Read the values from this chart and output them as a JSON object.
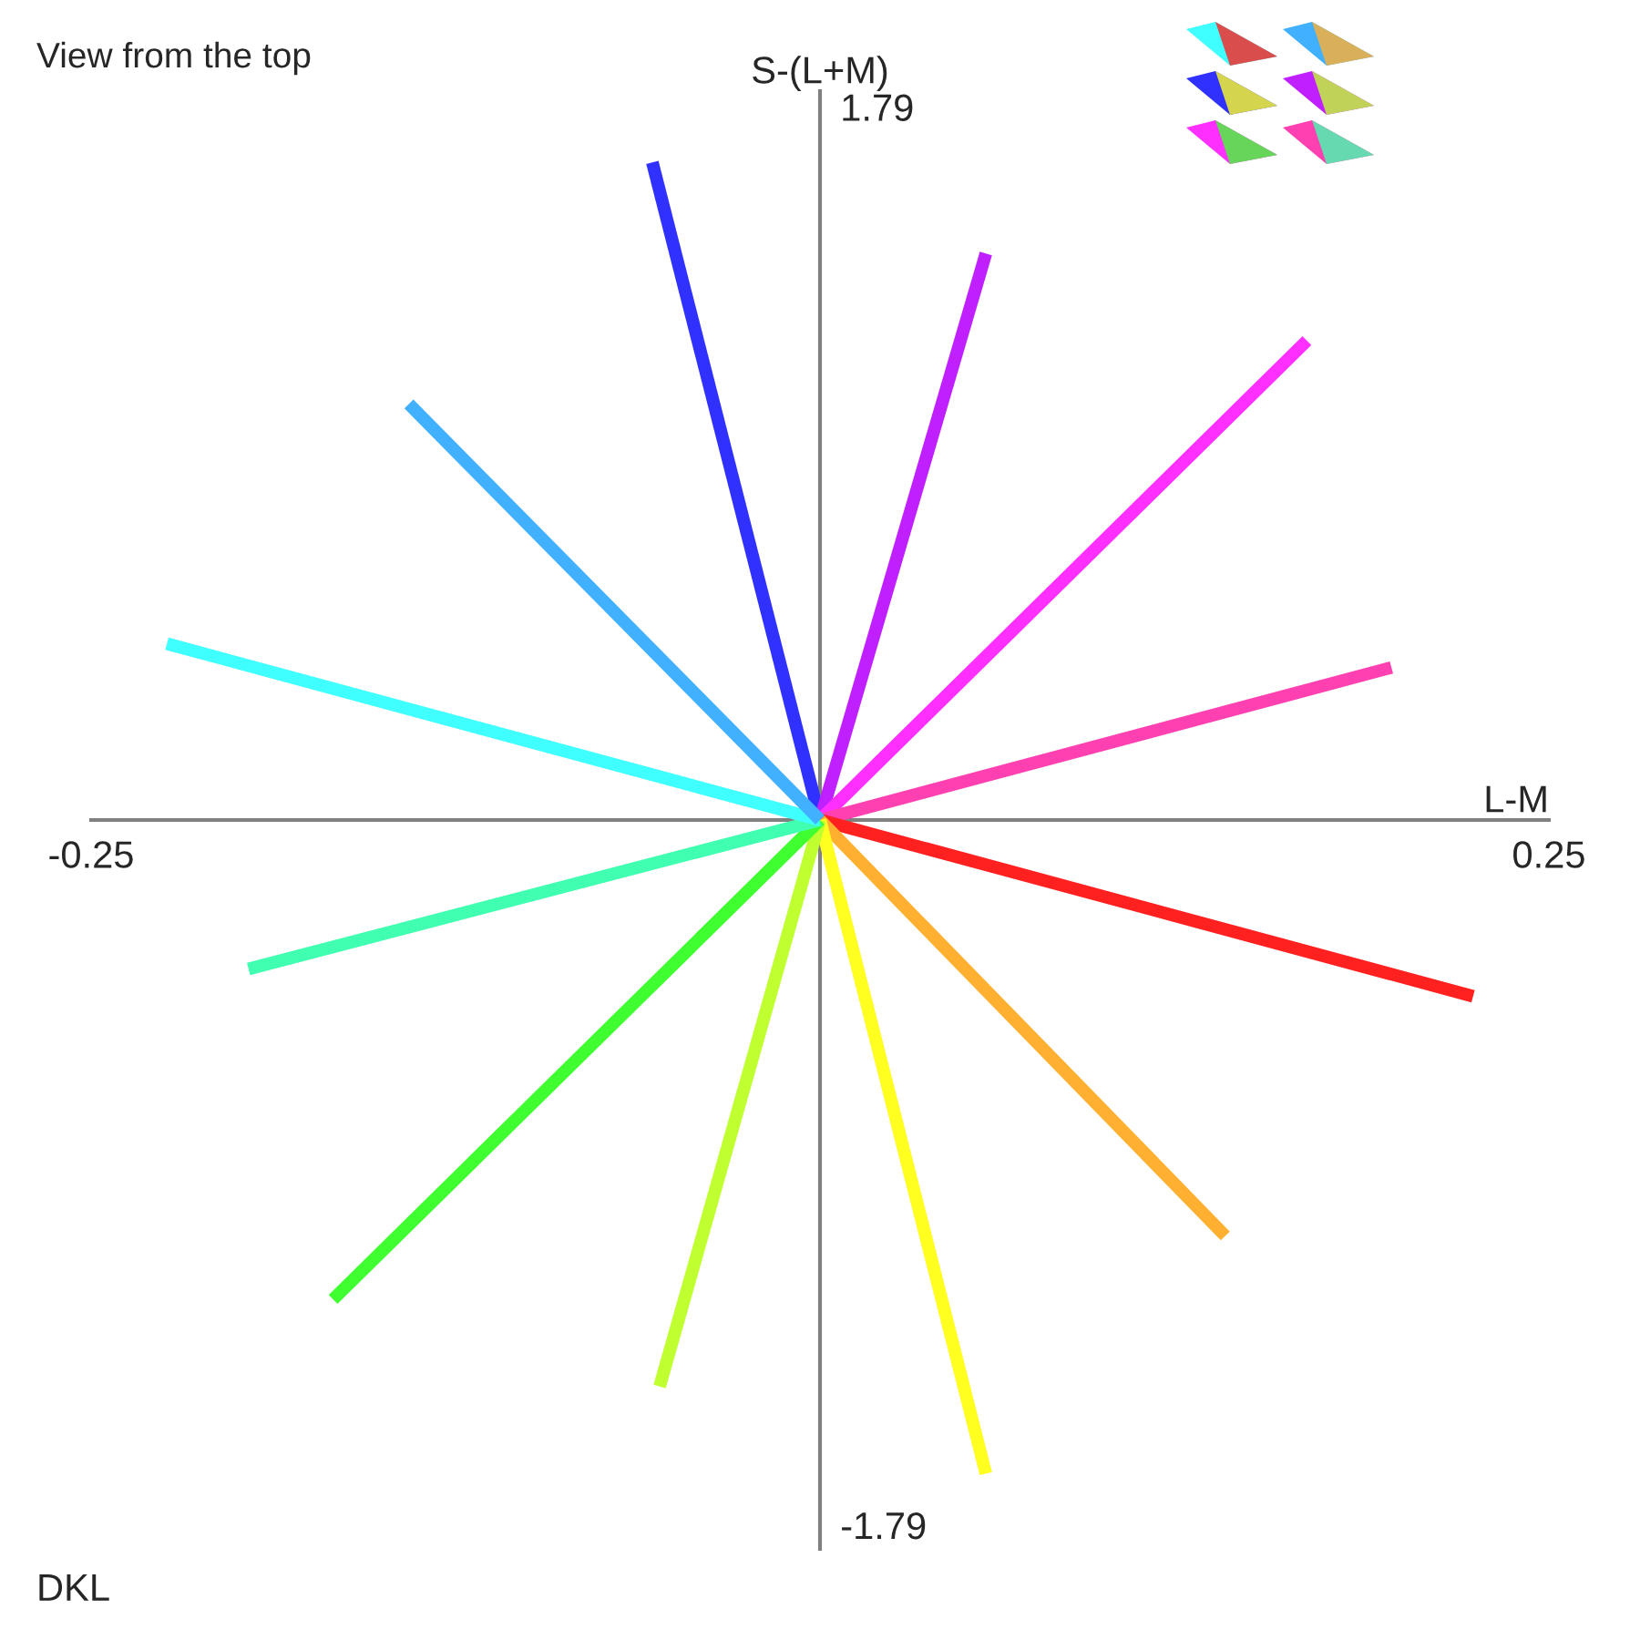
{
  "chart_data": {
    "type": "line",
    "title": "View from the top",
    "xlabel": "L-M",
    "ylabel": "S-(L+M)",
    "annotations": [
      "DKL"
    ],
    "xlim": [
      -0.25,
      0.25
    ],
    "ylim": [
      -1.84,
      1.84
    ],
    "xticks": [
      -0.25,
      0.25
    ],
    "yticks": [
      -1.79,
      1.79
    ],
    "grid": false,
    "marker": "none",
    "line_style": "solid",
    "series": [
      {
        "color": "#3030ff",
        "x": [
          0,
          -0.0575
        ],
        "values": [
          0,
          1.66
        ]
      },
      {
        "color": "#c020ff",
        "x": [
          0,
          0.0569
        ],
        "values": [
          0,
          1.43
        ]
      },
      {
        "color": "#ff30ff",
        "x": [
          0,
          0.167
        ],
        "values": [
          0,
          1.21
        ]
      },
      {
        "color": "#ff40b0",
        "x": [
          0,
          0.196
        ],
        "values": [
          0,
          0.385
        ]
      },
      {
        "color": "#ff2020",
        "x": [
          0,
          0.224
        ],
        "values": [
          0,
          -0.445
        ]
      },
      {
        "color": "#ffb030",
        "x": [
          0,
          0.139
        ],
        "values": [
          0,
          -1.05
        ]
      },
      {
        "color": "#ffff20",
        "x": [
          0,
          0.0569
        ],
        "values": [
          0,
          -1.65
        ]
      },
      {
        "color": "#c0ff30",
        "x": [
          0,
          -0.055
        ],
        "values": [
          0,
          -1.43
        ]
      },
      {
        "color": "#40ff30",
        "x": [
          0,
          -0.167
        ],
        "values": [
          0,
          -1.21
        ]
      },
      {
        "color": "#40ffb0",
        "x": [
          0,
          -0.196
        ],
        "values": [
          0,
          -0.376
        ]
      },
      {
        "color": "#40ffff",
        "x": [
          0,
          -0.224
        ],
        "values": [
          0,
          0.445
        ]
      },
      {
        "color": "#40b0ff",
        "x": [
          0,
          -0.141
        ],
        "values": [
          0,
          1.05
        ]
      }
    ]
  }
}
